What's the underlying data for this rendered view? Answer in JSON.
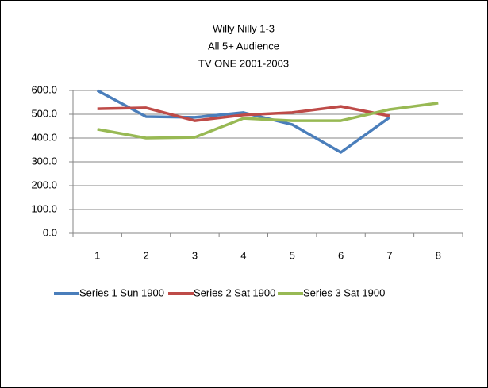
{
  "chart_data": {
    "type": "line",
    "title": [
      "Willy Nilly 1-3",
      "All 5+ Audience",
      "TV ONE 2001-2003"
    ],
    "categories": [
      "1",
      "2",
      "3",
      "4",
      "5",
      "6",
      "7",
      "8"
    ],
    "series": [
      {
        "name": "Series 1 Sun 1900",
        "color": "#4a7ebb",
        "values": [
          600,
          490,
          487,
          507,
          457,
          340,
          487,
          null
        ]
      },
      {
        "name": "Series 2 Sat 1900",
        "color": "#be4b48",
        "values": [
          523,
          527,
          473,
          497,
          507,
          533,
          493,
          null
        ]
      },
      {
        "name": "Series 3 Sat 1900",
        "color": "#98b954",
        "values": [
          437,
          400,
          403,
          483,
          473,
          473,
          520,
          547
        ]
      }
    ],
    "ylim": [
      0,
      600
    ],
    "yticks": [
      {
        "value": 0,
        "label": "0.0"
      },
      {
        "value": 100,
        "label": "100.0"
      },
      {
        "value": 200,
        "label": "200.0"
      },
      {
        "value": 300,
        "label": "300.0"
      },
      {
        "value": 400,
        "label": "400.0"
      },
      {
        "value": 500,
        "label": "500.0"
      },
      {
        "value": 600,
        "label": "600.0"
      }
    ],
    "grid": true,
    "legend": "bottom"
  }
}
